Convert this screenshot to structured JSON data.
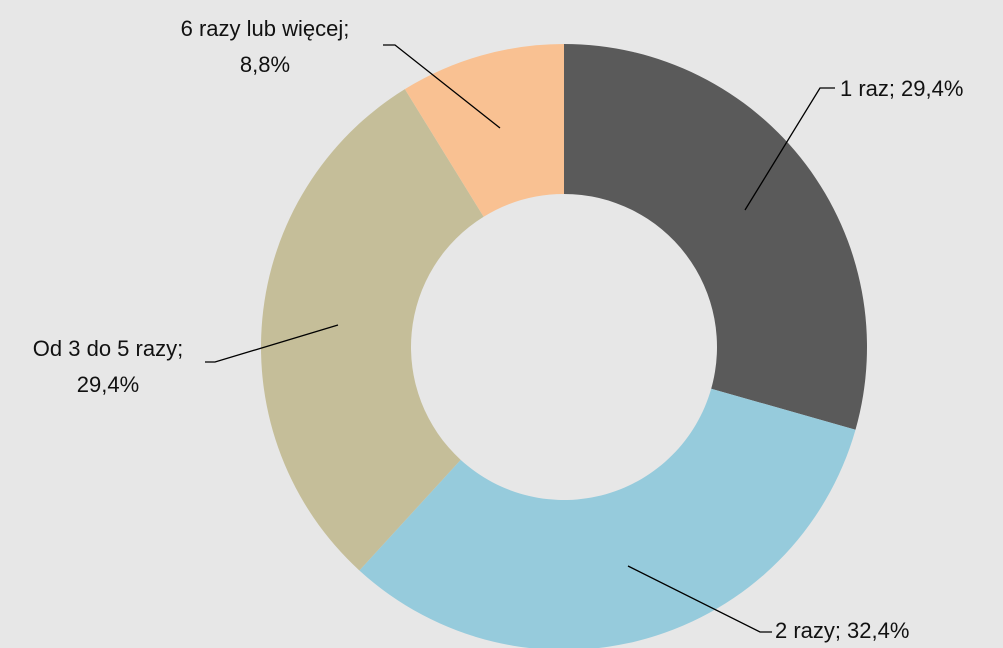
{
  "chart_data": {
    "type": "donut",
    "categories": [
      "1 raz",
      "2 razy",
      "Od 3 do 5 razy",
      "6 razy lub więcej"
    ],
    "values": [
      29.4,
      32.4,
      29.4,
      8.8
    ],
    "value_labels": [
      "29,4%",
      "32,4%",
      "29,4%",
      "8,8%"
    ],
    "label_separator": ";",
    "colors": [
      "#5a5a5a",
      "#96cbdc",
      "#c5be99",
      "#f9c192"
    ]
  }
}
